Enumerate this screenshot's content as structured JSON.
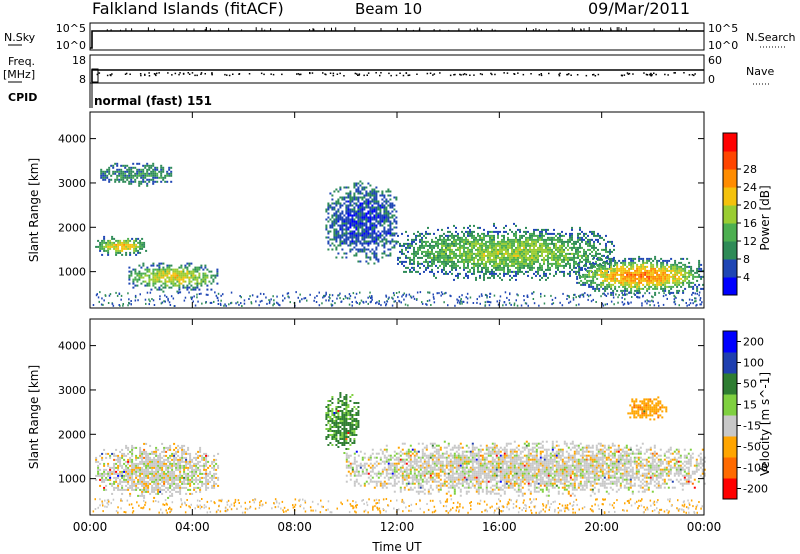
{
  "header": {
    "station": "Falkland Islands (fitACF)",
    "beam": "Beam 10",
    "date": "09/Mar/2011"
  },
  "panels": {
    "nsky": {
      "label": "N.Sky",
      "ticks": [
        "10^5",
        "10^0"
      ],
      "right_label": "N.Search",
      "right_ticks": [
        "10^5",
        "10^0"
      ]
    },
    "freq": {
      "label_line1": "Freq.",
      "label_line2": "[MHz]",
      "ticks": [
        "18",
        "8"
      ],
      "right_label": "Nave",
      "right_ticks": [
        "60",
        "0"
      ]
    },
    "cpid": {
      "label": "CPID",
      "value": "normal (fast) 151"
    }
  },
  "colors": {
    "power": [
      "#0000ff",
      "#1f46b4",
      "#2e8b57",
      "#4caf50",
      "#9acd32",
      "#f4c20d",
      "#ff8c00",
      "#ff4500",
      "#ff0000"
    ],
    "velocity": [
      "#ff0000",
      "#ff6a00",
      "#ffa500",
      "#c8c8c8",
      "#7fd040",
      "#2e7d32",
      "#1f3fb0",
      "#0000ff"
    ]
  },
  "chart_data": [
    {
      "type": "heatmap",
      "title": "Power",
      "ylabel": "Slant Range [km]",
      "xlabel": "",
      "x_ticks": [
        "00:00",
        "04:00",
        "08:00",
        "12:00",
        "16:00",
        "20:00",
        "00:00"
      ],
      "y_ticks": [
        1000,
        2000,
        3000,
        4000
      ],
      "ylim": [
        180,
        4600
      ],
      "colorbar": {
        "label": "Power [dB]",
        "ticks": [
          4,
          8,
          12,
          16,
          20,
          24,
          28
        ]
      },
      "regions": [
        {
          "start_hr": 0.2,
          "end_hr": 2.2,
          "range_lo_km": 1350,
          "range_hi_km": 1850,
          "dB": 22
        },
        {
          "start_hr": 1.5,
          "end_hr": 5.0,
          "range_lo_km": 550,
          "range_hi_km": 1250,
          "dB": 21
        },
        {
          "start_hr": 0.4,
          "end_hr": 3.2,
          "range_lo_km": 2950,
          "range_hi_km": 3500,
          "dB": 12
        },
        {
          "start_hr": 9.2,
          "end_hr": 12.0,
          "range_lo_km": 1150,
          "range_hi_km": 3100,
          "dB": 8
        },
        {
          "start_hr": 12.0,
          "end_hr": 20.5,
          "range_lo_km": 800,
          "range_hi_km": 2100,
          "dB": 18
        },
        {
          "start_hr": 19.0,
          "end_hr": 24.0,
          "range_lo_km": 450,
          "range_hi_km": 1400,
          "dB": 25
        }
      ]
    },
    {
      "type": "heatmap",
      "title": "Velocity",
      "ylabel": "Slant Range [km]",
      "xlabel": "Time UT",
      "x_ticks": [
        "00:00",
        "04:00",
        "08:00",
        "12:00",
        "16:00",
        "20:00",
        "00:00"
      ],
      "y_ticks": [
        1000,
        2000,
        3000,
        4000
      ],
      "ylim": [
        180,
        4600
      ],
      "colorbar": {
        "label": "Velocity [m s^-1]",
        "ticks": [
          200,
          100,
          50,
          15,
          -15,
          -50,
          -100,
          -200
        ]
      },
      "regions": [
        {
          "start_hr": 0.2,
          "end_hr": 5.0,
          "range_lo_km": 550,
          "range_hi_km": 1850,
          "m_s": 0
        },
        {
          "start_hr": 9.2,
          "end_hr": 10.5,
          "range_lo_km": 1600,
          "range_hi_km": 3000,
          "m_s": 60
        },
        {
          "start_hr": 10.0,
          "end_hr": 24.0,
          "range_lo_km": 600,
          "range_hi_km": 1900,
          "m_s": 0
        },
        {
          "start_hr": 21.0,
          "end_hr": 22.5,
          "range_lo_km": 2300,
          "range_hi_km": 2900,
          "m_s": -60
        }
      ]
    }
  ]
}
